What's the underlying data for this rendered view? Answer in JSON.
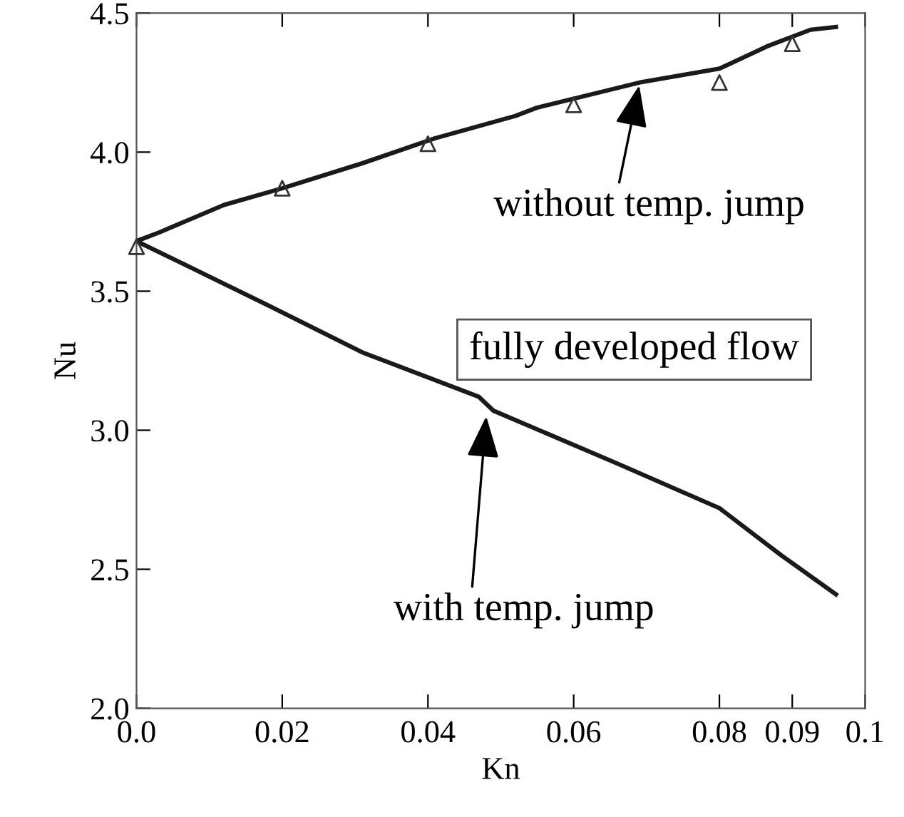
{
  "chart_data": {
    "type": "line",
    "xlabel": "Kn",
    "ylabel": "Nu",
    "xlim": [
      0,
      0.1
    ],
    "ylim": [
      2.0,
      4.5
    ],
    "xticks": [
      {
        "value": 0,
        "label": "0.0"
      },
      0.02,
      0.04,
      0.06,
      0.08,
      0.09,
      0.1
    ],
    "yticks": [
      {
        "value": 2.0,
        "label": "2.0"
      },
      2.5,
      {
        "value": 3.0,
        "label": "3.0"
      },
      3.5,
      {
        "value": 4.0,
        "label": "4.0"
      },
      4.5
    ],
    "grid": false,
    "legend": false,
    "series": [
      {
        "color": "#1a1a1a",
        "x": [
          0,
          0.003,
          0.012,
          0.02,
          0.031,
          0.041,
          0.052,
          0.055,
          0.069,
          0.08,
          0.0865,
          0.0925,
          0.096
        ],
        "values": [
          3.68,
          3.71,
          3.81,
          3.87,
          3.96,
          4.05,
          4.13,
          4.16,
          4.25,
          4.3,
          4.38,
          4.44,
          4.45
        ]
      },
      {
        "color": "#1a1a1a",
        "x": [
          0,
          0.018,
          0.031,
          0.047,
          0.049,
          0.066,
          0.08,
          0.0885,
          0.096
        ],
        "values": [
          3.68,
          3.45,
          3.28,
          3.12,
          3.07,
          2.88,
          2.72,
          2.55,
          2.41
        ]
      },
      {
        "type": "scatter",
        "color": "#333333",
        "marker": "triangle",
        "x": [
          0,
          0.02,
          0.04,
          0.06,
          0.08,
          0.09
        ],
        "values": [
          3.66,
          3.87,
          4.03,
          4.17,
          4.25,
          4.39
        ]
      }
    ],
    "annotations": [
      {
        "text": "without temp. jump",
        "x": 0.069,
        "y": 4.24
      },
      {
        "text": "with temp. jump",
        "x": 0.048,
        "y": 3.05
      },
      "fully developed flow"
    ]
  }
}
